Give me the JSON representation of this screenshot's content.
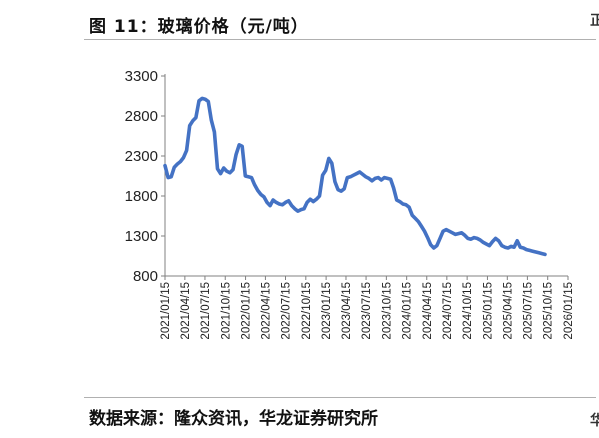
{
  "figure": {
    "title": "图 11：玻璃价格（元/吨）",
    "source": "数据来源：隆众资讯，华龙证券研究所"
  },
  "chart_data": {
    "type": "line",
    "title": "图 11：玻璃价格（元/吨）",
    "xlabel": "",
    "ylabel": "",
    "ylim": [
      800,
      3300
    ],
    "yticks": [
      800,
      1300,
      1800,
      2300,
      2800,
      3300
    ],
    "xticks": [
      "2021/01/15",
      "2021/04/15",
      "2021/07/15",
      "2021/10/15",
      "2022/01/15",
      "2022/04/15",
      "2022/07/15",
      "2022/10/15",
      "2023/01/15",
      "2023/04/15",
      "2023/07/15",
      "2023/10/15",
      "2024/01/15",
      "2024/04/15",
      "2024/07/15",
      "2024/10/15",
      "2025/01/15",
      "2025/04/15",
      "2025/07/15",
      "2025/10/15",
      "2026/01/15"
    ],
    "grid": false,
    "legend": "none",
    "line_color": "#4472c4",
    "series": [
      {
        "name": "",
        "points": [
          [
            "2021/01/15",
            2180
          ],
          [
            "2021/01/29",
            2030
          ],
          [
            "2021/02/12",
            2040
          ],
          [
            "2021/02/26",
            2160
          ],
          [
            "2021/03/12",
            2200
          ],
          [
            "2021/03/26",
            2230
          ],
          [
            "2021/04/09",
            2280
          ],
          [
            "2021/04/23",
            2370
          ],
          [
            "2021/05/07",
            2680
          ],
          [
            "2021/05/21",
            2740
          ],
          [
            "2021/06/04",
            2780
          ],
          [
            "2021/06/18",
            2990
          ],
          [
            "2021/07/02",
            3020
          ],
          [
            "2021/07/16",
            3010
          ],
          [
            "2021/07/30",
            2980
          ],
          [
            "2021/08/13",
            2750
          ],
          [
            "2021/08/27",
            2600
          ],
          [
            "2021/09/10",
            2140
          ],
          [
            "2021/09/24",
            2080
          ],
          [
            "2021/10/08",
            2150
          ],
          [
            "2021/10/22",
            2110
          ],
          [
            "2021/11/05",
            2090
          ],
          [
            "2021/11/19",
            2130
          ],
          [
            "2021/12/03",
            2320
          ],
          [
            "2021/12/17",
            2440
          ],
          [
            "2021/12/31",
            2420
          ],
          [
            "2022/01/14",
            2050
          ],
          [
            "2022/01/28",
            2040
          ],
          [
            "2022/02/11",
            2030
          ],
          [
            "2022/02/25",
            1940
          ],
          [
            "2022/03/11",
            1870
          ],
          [
            "2022/03/25",
            1820
          ],
          [
            "2022/04/08",
            1790
          ],
          [
            "2022/04/22",
            1720
          ],
          [
            "2022/05/06",
            1680
          ],
          [
            "2022/05/20",
            1750
          ],
          [
            "2022/06/03",
            1720
          ],
          [
            "2022/06/17",
            1700
          ],
          [
            "2022/07/01",
            1690
          ],
          [
            "2022/07/15",
            1720
          ],
          [
            "2022/07/29",
            1740
          ],
          [
            "2022/08/12",
            1680
          ],
          [
            "2022/08/26",
            1640
          ],
          [
            "2022/09/09",
            1610
          ],
          [
            "2022/09/23",
            1630
          ],
          [
            "2022/10/07",
            1640
          ],
          [
            "2022/10/21",
            1720
          ],
          [
            "2022/11/04",
            1760
          ],
          [
            "2022/11/18",
            1730
          ],
          [
            "2022/12/02",
            1760
          ],
          [
            "2022/12/16",
            1800
          ],
          [
            "2022/12/30",
            2060
          ],
          [
            "2023/01/13",
            2120
          ],
          [
            "2023/01/27",
            2270
          ],
          [
            "2023/02/10",
            2210
          ],
          [
            "2023/02/24",
            1980
          ],
          [
            "2023/03/10",
            1880
          ],
          [
            "2023/03/24",
            1860
          ],
          [
            "2023/04/07",
            1890
          ],
          [
            "2023/04/21",
            2030
          ],
          [
            "2023/05/05",
            2040
          ],
          [
            "2023/05/19",
            2060
          ],
          [
            "2023/06/02",
            2080
          ],
          [
            "2023/06/16",
            2100
          ],
          [
            "2023/06/30",
            2070
          ],
          [
            "2023/07/14",
            2040
          ],
          [
            "2023/07/28",
            2020
          ],
          [
            "2023/08/11",
            1990
          ],
          [
            "2023/08/25",
            2020
          ],
          [
            "2023/09/08",
            2030
          ],
          [
            "2023/09/22",
            2000
          ],
          [
            "2023/10/06",
            2030
          ],
          [
            "2023/10/20",
            2020
          ],
          [
            "2023/11/03",
            2010
          ],
          [
            "2023/11/17",
            1900
          ],
          [
            "2023/12/01",
            1750
          ],
          [
            "2023/12/15",
            1730
          ],
          [
            "2023/12/29",
            1700
          ],
          [
            "2024/01/12",
            1690
          ],
          [
            "2024/01/26",
            1660
          ],
          [
            "2024/02/09",
            1560
          ],
          [
            "2024/02/23",
            1520
          ],
          [
            "2024/03/08",
            1480
          ],
          [
            "2024/03/22",
            1420
          ],
          [
            "2024/04/05",
            1360
          ],
          [
            "2024/04/19",
            1280
          ],
          [
            "2024/05/03",
            1190
          ],
          [
            "2024/05/17",
            1150
          ],
          [
            "2024/05/31",
            1180
          ],
          [
            "2024/06/14",
            1270
          ],
          [
            "2024/06/28",
            1360
          ],
          [
            "2024/07/12",
            1380
          ],
          [
            "2024/07/26",
            1360
          ],
          [
            "2024/08/09",
            1340
          ],
          [
            "2024/08/23",
            1320
          ],
          [
            "2024/09/06",
            1330
          ],
          [
            "2024/09/20",
            1340
          ],
          [
            "2024/10/04",
            1310
          ],
          [
            "2024/10/18",
            1270
          ],
          [
            "2024/11/01",
            1260
          ],
          [
            "2024/11/15",
            1280
          ],
          [
            "2024/11/29",
            1270
          ],
          [
            "2024/12/13",
            1250
          ],
          [
            "2024/12/27",
            1220
          ],
          [
            "2025/01/10",
            1200
          ],
          [
            "2025/01/24",
            1180
          ],
          [
            "2025/02/07",
            1230
          ],
          [
            "2025/02/21",
            1270
          ],
          [
            "2025/03/07",
            1240
          ],
          [
            "2025/03/21",
            1180
          ],
          [
            "2025/04/04",
            1160
          ],
          [
            "2025/04/18",
            1150
          ],
          [
            "2025/05/02",
            1170
          ],
          [
            "2025/05/16",
            1160
          ],
          [
            "2025/05/30",
            1240
          ],
          [
            "2025/06/13",
            1160
          ],
          [
            "2025/06/27",
            1150
          ],
          [
            "2025/07/11",
            1130
          ],
          [
            "2025/07/25",
            1120
          ],
          [
            "2025/08/08",
            1110
          ],
          [
            "2025/08/22",
            1100
          ],
          [
            "2025/09/05",
            1090
          ],
          [
            "2025/09/19",
            1080
          ],
          [
            "2025/10/03",
            1070
          ]
        ]
      }
    ]
  }
}
